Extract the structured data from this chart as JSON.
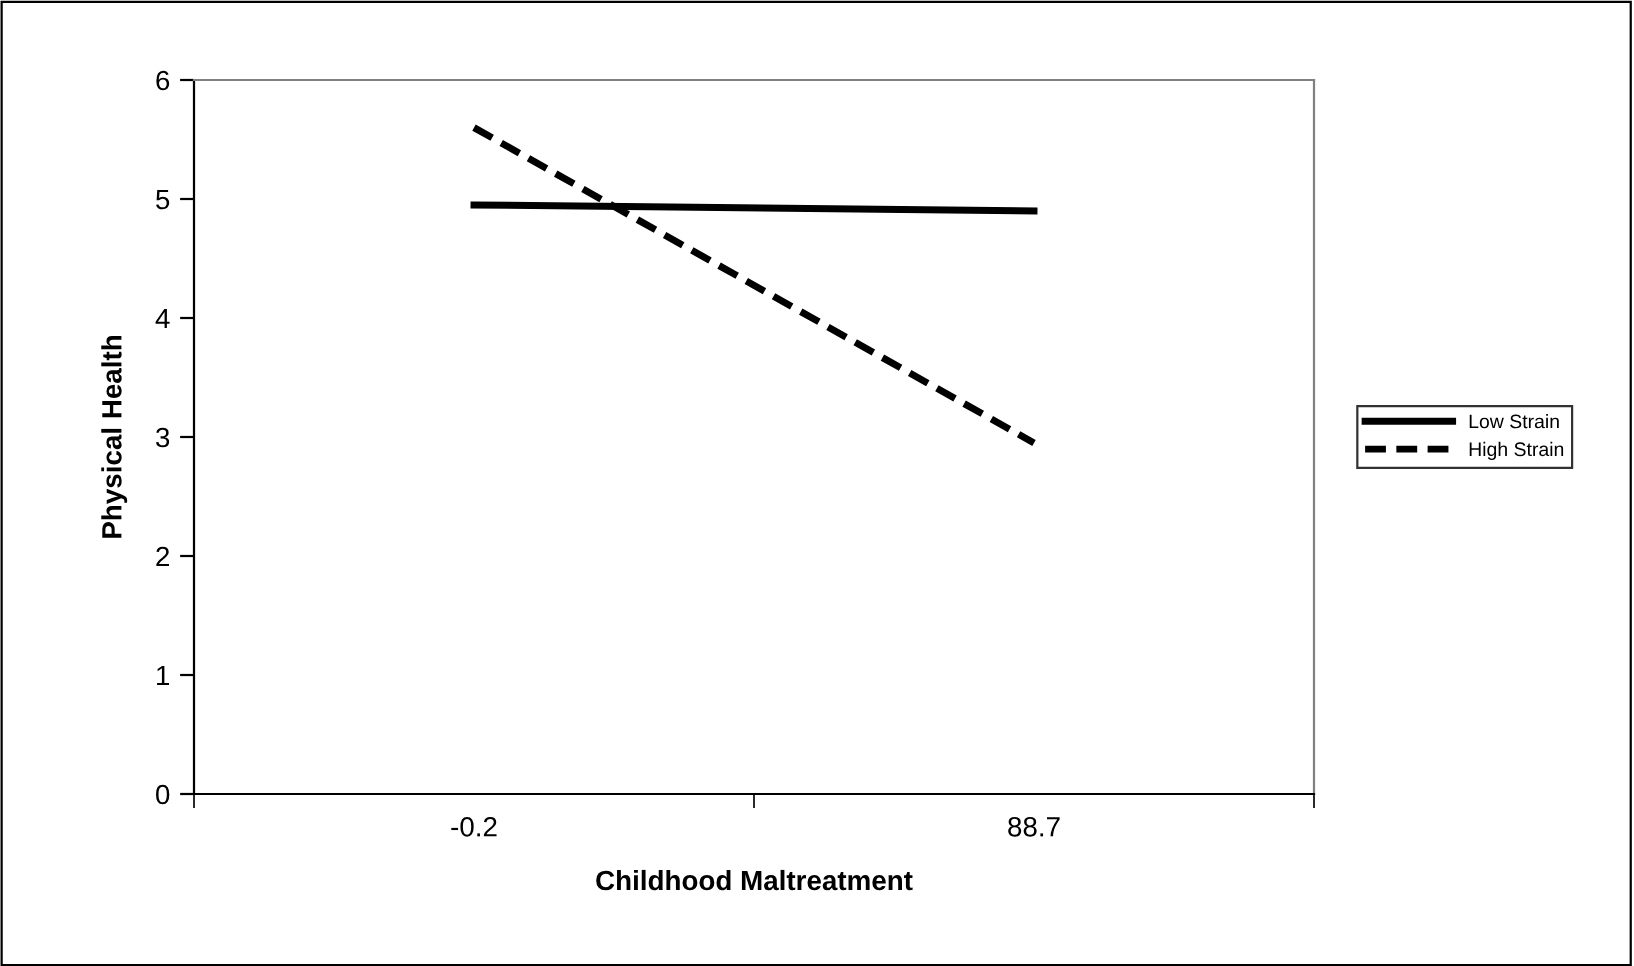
{
  "chart_data": {
    "type": "line",
    "xlabel": "Childhood Maltreatment",
    "ylabel": "Physical Health",
    "categories": [
      "-0.2",
      "88.7"
    ],
    "series": [
      {
        "name": "Low Strain",
        "color": "#000000",
        "values": [
          4.95,
          4.9
        ],
        "line_style": "solid"
      },
      {
        "name": "High Strain",
        "color": "#000000",
        "values": [
          5.6,
          2.95
        ],
        "line_style": "dashed"
      }
    ],
    "ylim": [
      0,
      6
    ],
    "yticks": [
      0,
      1,
      2,
      3,
      4,
      5,
      6
    ],
    "grid": false,
    "legend": "right",
    "marker": "none"
  }
}
